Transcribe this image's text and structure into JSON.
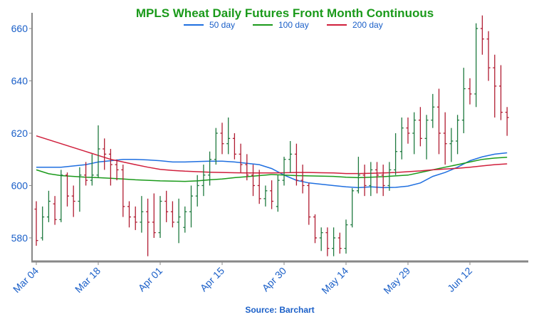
{
  "chart_data": {
    "type": "ohlc",
    "title": "MPLS Wheat Daily Futures Front Month Continuous",
    "source": "Source: Barchart",
    "ylim": [
      571,
      666
    ],
    "yticks": [
      580,
      600,
      620,
      640,
      660
    ],
    "xticks": [
      "Mar 04",
      "Mar 18",
      "Apr 01",
      "Apr 15",
      "Apr 30",
      "May 14",
      "May 29",
      "Jun 12"
    ],
    "xtick_index": [
      0,
      10,
      20,
      30,
      40,
      50,
      60,
      70
    ],
    "up_color": "#1f7a3f",
    "down_color": "#b01c32",
    "legend_position": "top",
    "bars": [
      [
        591,
        594,
        577,
        579
      ],
      [
        580,
        592,
        579,
        588
      ],
      [
        588,
        598,
        586,
        594
      ],
      [
        593,
        596,
        585,
        587
      ],
      [
        587,
        606,
        586,
        604
      ],
      [
        604,
        605,
        592,
        596
      ],
      [
        596,
        600,
        588,
        594
      ],
      [
        594,
        607,
        590,
        604
      ],
      [
        604,
        609,
        600,
        602
      ],
      [
        602,
        612,
        600,
        604
      ],
      [
        604,
        623,
        603,
        614
      ],
      [
        614,
        618,
        606,
        612
      ],
      [
        612,
        614,
        600,
        608
      ],
      [
        608,
        610,
        602,
        606
      ],
      [
        606,
        608,
        588,
        592
      ],
      [
        592,
        594,
        584,
        588
      ],
      [
        588,
        592,
        583,
        586
      ],
      [
        586,
        596,
        582,
        590
      ],
      [
        590,
        595,
        573,
        586
      ],
      [
        586,
        597,
        580,
        582
      ],
      [
        582,
        596,
        580,
        594
      ],
      [
        594,
        598,
        586,
        590
      ],
      [
        590,
        594,
        584,
        586
      ],
      [
        586,
        595,
        578,
        588
      ],
      [
        584,
        592,
        582,
        590
      ],
      [
        590,
        600,
        584,
        596
      ],
      [
        596,
        604,
        592,
        600
      ],
      [
        600,
        608,
        596,
        604
      ],
      [
        604,
        613,
        600,
        610
      ],
      [
        610,
        622,
        608,
        620
      ],
      [
        620,
        624,
        612,
        616
      ],
      [
        616,
        626,
        612,
        618
      ],
      [
        618,
        620,
        610,
        612
      ],
      [
        612,
        616,
        605,
        608
      ],
      [
        608,
        612,
        602,
        604
      ],
      [
        604,
        608,
        596,
        600
      ],
      [
        600,
        606,
        593,
        595
      ],
      [
        595,
        600,
        592,
        598
      ],
      [
        598,
        602,
        591,
        594
      ],
      [
        592,
        604,
        590,
        602
      ],
      [
        602,
        611,
        600,
        610
      ],
      [
        610,
        617,
        605,
        612
      ],
      [
        612,
        616,
        600,
        602
      ],
      [
        602,
        608,
        597,
        600
      ],
      [
        600,
        601,
        585,
        588
      ],
      [
        588,
        589,
        578,
        580
      ],
      [
        580,
        584,
        575,
        582
      ],
      [
        582,
        584,
        573,
        576
      ],
      [
        576,
        584,
        573,
        580
      ],
      [
        580,
        582,
        574,
        576
      ],
      [
        576,
        587,
        574,
        585
      ],
      [
        585,
        599,
        584,
        598
      ],
      [
        598,
        611,
        597,
        604
      ],
      [
        604,
        608,
        596,
        600
      ],
      [
        600,
        609,
        596,
        606
      ],
      [
        606,
        609,
        597,
        604
      ],
      [
        604,
        608,
        596,
        600
      ],
      [
        600,
        609,
        598,
        606
      ],
      [
        606,
        620,
        604,
        613
      ],
      [
        613,
        626,
        610,
        622
      ],
      [
        622,
        626,
        616,
        620
      ],
      [
        620,
        628,
        612,
        625
      ],
      [
        625,
        630,
        615,
        618
      ],
      [
        618,
        627,
        610,
        625
      ],
      [
        625,
        635,
        622,
        630
      ],
      [
        630,
        637,
        612,
        620
      ],
      [
        620,
        628,
        608,
        616
      ],
      [
        616,
        622,
        609,
        617
      ],
      [
        617,
        627,
        612,
        625
      ],
      [
        625,
        645,
        620,
        637
      ],
      [
        637,
        641,
        631,
        635
      ],
      [
        635,
        662,
        630,
        660
      ],
      [
        660,
        665,
        650,
        656
      ],
      [
        656,
        659,
        640,
        645
      ],
      [
        645,
        650,
        626,
        638
      ],
      [
        638,
        646,
        625,
        628
      ],
      [
        628,
        630,
        619,
        626
      ]
    ],
    "series": [
      {
        "name": "50 day",
        "color": "#1f6fe0",
        "x": [
          0,
          4,
          8,
          10,
          12,
          14,
          16,
          18,
          20,
          22,
          24,
          26,
          28,
          30,
          32,
          34,
          36,
          38,
          40,
          42,
          44,
          46,
          48,
          50,
          52,
          54,
          56,
          58,
          60,
          62,
          64,
          66,
          68,
          70,
          72,
          74,
          76
        ],
        "values": [
          607,
          607,
          608,
          609,
          609.5,
          610,
          610,
          609.8,
          609.5,
          609,
          609,
          609.2,
          609.3,
          609.3,
          609,
          608.5,
          608,
          606.5,
          604,
          602,
          601,
          600.5,
          600,
          599.5,
          599.2,
          599.5,
          599.2,
          599.3,
          599.8,
          601,
          603.5,
          605,
          607,
          609.5,
          611,
          612,
          612.5
        ]
      },
      {
        "name": "100 day",
        "color": "#1a9a1a",
        "x": [
          0,
          2,
          4,
          6,
          8,
          10,
          12,
          14,
          16,
          18,
          20,
          22,
          24,
          26,
          28,
          30,
          32,
          34,
          36,
          38,
          40,
          42,
          44,
          46,
          48,
          50,
          52,
          54,
          56,
          58,
          60,
          62,
          64,
          66,
          68,
          70,
          72,
          74,
          76
        ],
        "values": [
          606,
          604.5,
          603.8,
          603.5,
          603.2,
          603,
          602.8,
          602.5,
          602.2,
          602,
          601.8,
          601.7,
          601.6,
          601.8,
          602.2,
          602.5,
          603,
          603.4,
          603.8,
          604.2,
          604,
          603.8,
          603.7,
          603.6,
          603.5,
          603.2,
          603,
          603.2,
          603.4,
          603.7,
          604,
          605,
          606,
          607,
          608,
          609,
          610,
          610.5,
          610.8
        ]
      },
      {
        "name": "200 day",
        "color": "#d01f3c",
        "x": [
          0,
          2,
          4,
          6,
          8,
          10,
          12,
          14,
          16,
          18,
          20,
          22,
          24,
          26,
          28,
          30,
          32,
          34,
          36,
          38,
          40,
          42,
          44,
          46,
          48,
          50,
          52,
          54,
          56,
          58,
          60,
          62,
          64,
          66,
          68,
          70,
          72,
          74,
          76
        ],
        "values": [
          619,
          617.5,
          616,
          614.5,
          613,
          611.5,
          610,
          609,
          608,
          607,
          606.2,
          605.8,
          605.5,
          605.3,
          605.1,
          605,
          604.9,
          604.8,
          604.8,
          604.8,
          604.9,
          605,
          605,
          604.9,
          604.8,
          604.6,
          604.6,
          604.7,
          604.8,
          605,
          605.3,
          605.6,
          606,
          606.3,
          606.6,
          607,
          607.5,
          608,
          608.3
        ]
      }
    ]
  }
}
